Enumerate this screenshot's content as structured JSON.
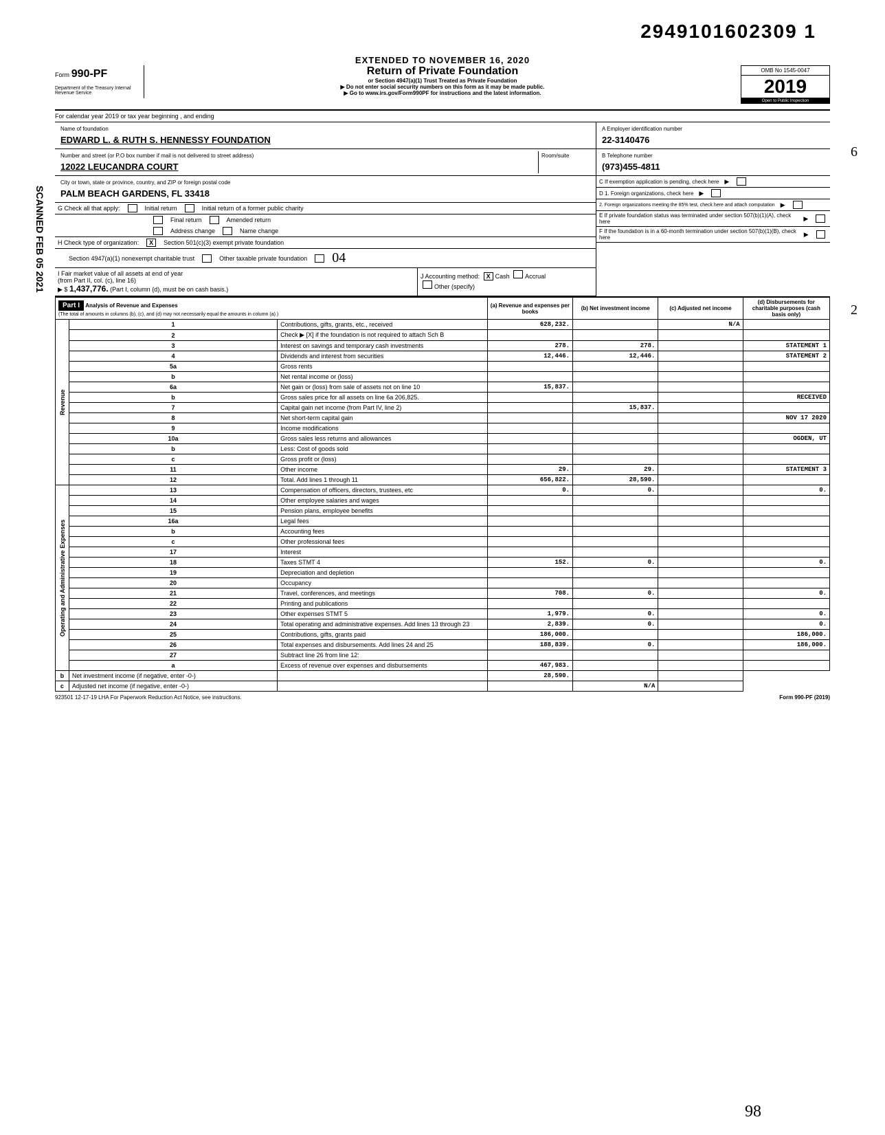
{
  "top_number": "2949101602309 1",
  "scanned_date": "SCANNED FEB 05 2021",
  "extended": "EXTENDED TO NOVEMBER 16, 2020",
  "form": {
    "number_prefix": "Form",
    "number": "990-PF",
    "dept": "Department of the Treasury\nInternal Revenue Service",
    "title": "Return of Private Foundation",
    "subtitle1": "or Section 4947(a)(1) Trust Treated as Private Foundation",
    "subtitle2": "▶ Do not enter social security numbers on this form as it may be made public.",
    "subtitle3": "▶ Go to www.irs.gov/Form990PF for instructions and the latest information.",
    "omb": "OMB No  1545-0047",
    "year": "2019",
    "open": "Open to Public Inspection"
  },
  "calendar": "For calendar year 2019 or tax year beginning                                                      , and ending",
  "foundation": {
    "name_label": "Name of foundation",
    "name": "EDWARD L. & RUTH S. HENNESSY FOUNDATION",
    "street_label": "Number and street (or P.O  box number if mail is not delivered to street address)",
    "room_label": "Room/suite",
    "street": "12022 LEUCANDRA COURT",
    "city_label": "City or town, state or province, country, and ZIP or foreign postal code",
    "city": "PALM BEACH GARDENS, FL   33418",
    "ein_label": "A  Employer identification number",
    "ein": "22-3140476",
    "phone_label": "B  Telephone number",
    "phone": "(973)455-4811",
    "exemption_label": "C  If exemption application is pending, check here"
  },
  "section_g": {
    "label": "G  Check all that apply:",
    "initial_return": "Initial return",
    "initial_former": "Initial return of a former public charity",
    "final_return": "Final return",
    "amended": "Amended return",
    "address_change": "Address change",
    "name_change": "Name change"
  },
  "section_d": {
    "d1": "D  1. Foreign organizations, check here",
    "d2": "2. Foreign organizations meeting the 85% test, check here and attach computation"
  },
  "section_h": {
    "label": "H  Check type of organization:",
    "opt1": "Section 501(c)(3) exempt private foundation",
    "opt2": "Section 4947(a)(1) nonexempt charitable trust",
    "opt3": "Other taxable private foundation"
  },
  "section_e": "E  If private foundation status was terminated under section 507(b)(1)(A), check here",
  "section_f": "F  If the foundation is in a 60-month termination under section 507(b)(1)(B), check here",
  "section_i": {
    "label": "I  Fair market value of all assets at end of year",
    "sub": "(from Part II, col. (c), line 16)",
    "amount": "1,437,776.",
    "part_i_note": "(Part I, column (d), must be on cash basis.)"
  },
  "section_j": {
    "label": "J  Accounting method:",
    "cash": "Cash",
    "accrual": "Accrual",
    "other": "Other (specify)"
  },
  "part1": {
    "header": "Part I",
    "title": "Analysis of Revenue and Expenses",
    "note": "(The total of amounts in columns (b), (c), and (d) may not necessarily equal the amounts in column (a).)",
    "col_a": "(a) Revenue and expenses per books",
    "col_b": "(b) Net investment income",
    "col_c": "(c) Adjusted net income",
    "col_d": "(d) Disbursements for charitable purposes (cash basis only)"
  },
  "revenue_label": "Revenue",
  "expenses_label": "Operating and Administrative Expenses",
  "lines": [
    {
      "num": "1",
      "label": "Contributions, gifts, grants, etc., received",
      "a": "628,232.",
      "b": "",
      "c": "N/A",
      "d": ""
    },
    {
      "num": "2",
      "label": "Check ▶ [X] if the foundation is not required to attach Sch  B",
      "a": "",
      "b": "",
      "c": "",
      "d": ""
    },
    {
      "num": "3",
      "label": "Interest on savings and temporary cash investments",
      "a": "278.",
      "b": "278.",
      "c": "",
      "d": "STATEMENT 1"
    },
    {
      "num": "4",
      "label": "Dividends and interest from securities",
      "a": "12,446.",
      "b": "12,446.",
      "c": "",
      "d": "STATEMENT 2"
    },
    {
      "num": "5a",
      "label": "Gross rents",
      "a": "",
      "b": "",
      "c": "",
      "d": ""
    },
    {
      "num": "b",
      "label": "Net rental income or (loss)",
      "a": "",
      "b": "",
      "c": "",
      "d": ""
    },
    {
      "num": "6a",
      "label": "Net gain or (loss) from sale of assets not on line 10",
      "a": "15,837.",
      "b": "",
      "c": "",
      "d": ""
    },
    {
      "num": "b",
      "label": "Gross sales price for all assets on line 6a      206,825.",
      "a": "",
      "b": "",
      "c": "",
      "d": "RECEIVED"
    },
    {
      "num": "7",
      "label": "Capital gain net income (from Part IV, line 2)",
      "a": "",
      "b": "15,837.",
      "c": "",
      "d": ""
    },
    {
      "num": "8",
      "label": "Net short-term capital gain",
      "a": "",
      "b": "",
      "c": "",
      "d": "NOV 17 2020"
    },
    {
      "num": "9",
      "label": "Income modifications",
      "a": "",
      "b": "",
      "c": "",
      "d": ""
    },
    {
      "num": "10a",
      "label": "Gross sales less returns and allowances",
      "a": "",
      "b": "",
      "c": "",
      "d": "OGDEN, UT"
    },
    {
      "num": "b",
      "label": "Less: Cost of goods sold",
      "a": "",
      "b": "",
      "c": "",
      "d": ""
    },
    {
      "num": "c",
      "label": "Gross profit or (loss)",
      "a": "",
      "b": "",
      "c": "",
      "d": ""
    },
    {
      "num": "11",
      "label": "Other income",
      "a": "29.",
      "b": "29.",
      "c": "",
      "d": "STATEMENT 3"
    },
    {
      "num": "12",
      "label": "Total. Add lines 1 through 11",
      "a": "656,822.",
      "b": "28,590.",
      "c": "",
      "d": ""
    },
    {
      "num": "13",
      "label": "Compensation of officers, directors, trustees, etc",
      "a": "0.",
      "b": "0.",
      "c": "",
      "d": "0."
    },
    {
      "num": "14",
      "label": "Other employee salaries and wages",
      "a": "",
      "b": "",
      "c": "",
      "d": ""
    },
    {
      "num": "15",
      "label": "Pension plans, employee benefits",
      "a": "",
      "b": "",
      "c": "",
      "d": ""
    },
    {
      "num": "16a",
      "label": "Legal fees",
      "a": "",
      "b": "",
      "c": "",
      "d": ""
    },
    {
      "num": "b",
      "label": "Accounting fees",
      "a": "",
      "b": "",
      "c": "",
      "d": ""
    },
    {
      "num": "c",
      "label": "Other professional fees",
      "a": "",
      "b": "",
      "c": "",
      "d": ""
    },
    {
      "num": "17",
      "label": "Interest",
      "a": "",
      "b": "",
      "c": "",
      "d": ""
    },
    {
      "num": "18",
      "label": "Taxes                    STMT 4",
      "a": "152.",
      "b": "0.",
      "c": "",
      "d": "0."
    },
    {
      "num": "19",
      "label": "Depreciation and depletion",
      "a": "",
      "b": "",
      "c": "",
      "d": ""
    },
    {
      "num": "20",
      "label": "Occupancy",
      "a": "",
      "b": "",
      "c": "",
      "d": ""
    },
    {
      "num": "21",
      "label": "Travel, conferences, and meetings",
      "a": "708.",
      "b": "0.",
      "c": "",
      "d": "0."
    },
    {
      "num": "22",
      "label": "Printing and publications",
      "a": "",
      "b": "",
      "c": "",
      "d": ""
    },
    {
      "num": "23",
      "label": "Other expenses           STMT 5",
      "a": "1,979.",
      "b": "0.",
      "c": "",
      "d": "0."
    },
    {
      "num": "24",
      "label": "Total operating and administrative expenses. Add lines 13 through 23",
      "a": "2,839.",
      "b": "0.",
      "c": "",
      "d": "0."
    },
    {
      "num": "25",
      "label": "Contributions, gifts, grants paid",
      "a": "186,000.",
      "b": "",
      "c": "",
      "d": "186,000."
    },
    {
      "num": "26",
      "label": "Total expenses and disbursements. Add lines 24 and 25",
      "a": "188,839.",
      "b": "0.",
      "c": "",
      "d": "186,000."
    },
    {
      "num": "27",
      "label": "Subtract line 26 from line 12:",
      "a": "",
      "b": "",
      "c": "",
      "d": ""
    },
    {
      "num": "a",
      "label": "Excess of revenue over expenses and disbursements",
      "a": "467,983.",
      "b": "",
      "c": "",
      "d": ""
    },
    {
      "num": "b",
      "label": "Net investment income (if negative, enter -0-)",
      "a": "",
      "b": "28,590.",
      "c": "",
      "d": ""
    },
    {
      "num": "c",
      "label": "Adjusted net income (if negative, enter -0-)",
      "a": "",
      "b": "",
      "c": "N/A",
      "d": ""
    }
  ],
  "footer": {
    "left": "923501  12-17-19  LHA  For Paperwork Reduction Act Notice, see instructions.",
    "right": "Form 990-PF (2019)"
  },
  "handwritten_04": "04",
  "handwritten_6": "6",
  "handwritten_2": "2",
  "handwritten_98": "98"
}
